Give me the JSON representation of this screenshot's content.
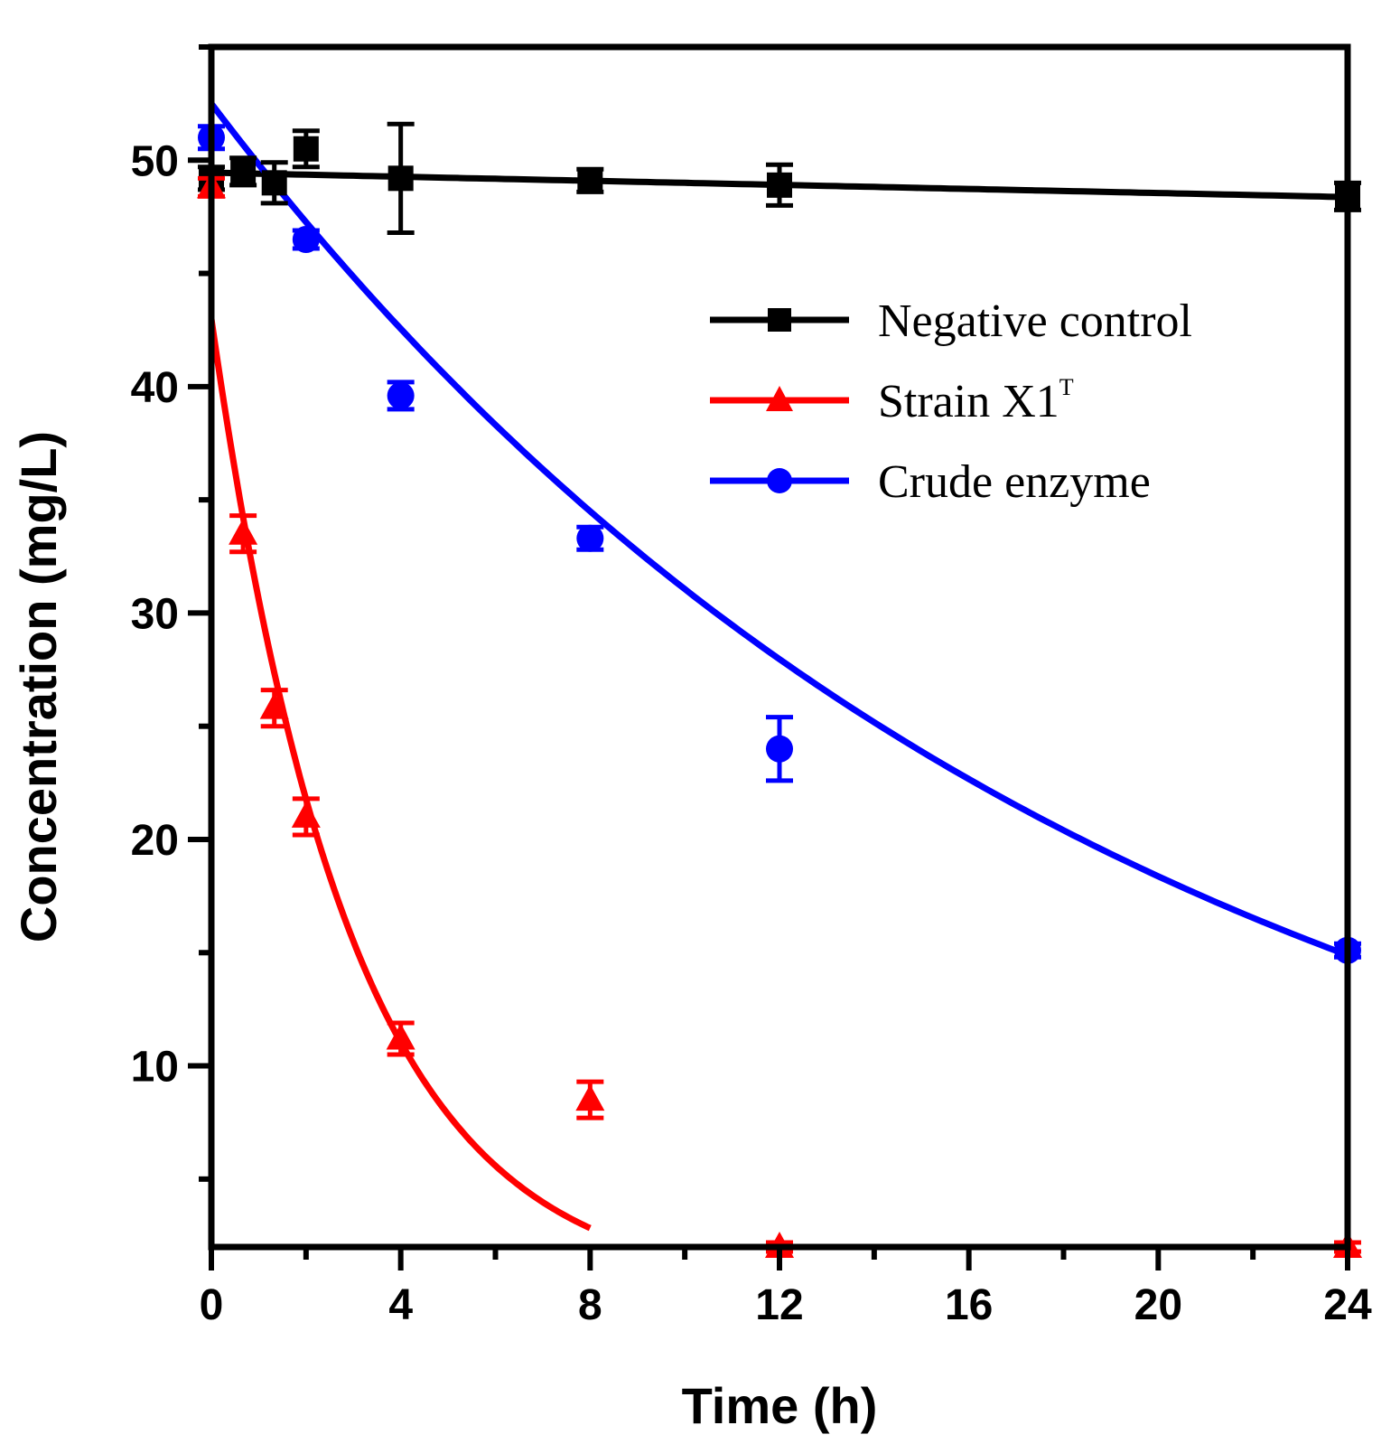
{
  "chart_data": {
    "type": "line",
    "title": "",
    "xlabel": "Time (h)",
    "ylabel": "Concentration (mg/L)",
    "xlim": [
      0,
      24
    ],
    "ylim": [
      2,
      55
    ],
    "xticks": [
      0,
      4,
      8,
      12,
      16,
      20,
      24
    ],
    "yticks": [
      10,
      20,
      30,
      40,
      50
    ],
    "grid": false,
    "legend_position": "top-right",
    "series": [
      {
        "name": "Negative control",
        "legend_main": "Negative control",
        "legend_sup": "",
        "color": "#000000",
        "marker": "square",
        "fit": "linear",
        "fit_range": [
          0,
          24
        ],
        "x": [
          0,
          0.67,
          1.33,
          2,
          4,
          8,
          12,
          24
        ],
        "y": [
          49.2,
          49.5,
          49.0,
          50.5,
          49.2,
          49.1,
          48.9,
          48.4
        ],
        "err": [
          0.5,
          0.6,
          0.9,
          0.8,
          2.4,
          0.5,
          0.9,
          0.6
        ],
        "fit_params": {
          "a": 49.45,
          "b": -0.045
        }
      },
      {
        "name": "Strain X1T",
        "legend_main": "Strain X1",
        "legend_sup": "T",
        "color": "#ff0000",
        "marker": "triangle",
        "fit": "exponential",
        "fit_range": [
          0,
          8
        ],
        "x": [
          0,
          0.67,
          1.33,
          2,
          4,
          8,
          12,
          24
        ],
        "y": [
          48.8,
          33.5,
          25.8,
          21.0,
          11.2,
          8.5,
          2.0,
          2.0
        ],
        "err": [
          0.4,
          0.8,
          0.8,
          0.8,
          0.7,
          0.8,
          0.2,
          0.2
        ],
        "fit_params": {
          "a": 43.0,
          "k": 0.34
        }
      },
      {
        "name": "Crude enzyme",
        "legend_main": "Crude enzyme",
        "legend_sup": "",
        "color": "#0000ff",
        "marker": "circle",
        "fit": "exponential",
        "fit_range": [
          0,
          24
        ],
        "x": [
          0,
          2,
          4,
          8,
          12,
          24
        ],
        "y": [
          51.0,
          46.5,
          39.6,
          33.3,
          24.0,
          15.1
        ],
        "err": [
          0.5,
          0.4,
          0.6,
          0.5,
          1.4,
          0.3
        ],
        "fit_params": {
          "a": 52.5,
          "k": 0.0525
        }
      }
    ]
  }
}
